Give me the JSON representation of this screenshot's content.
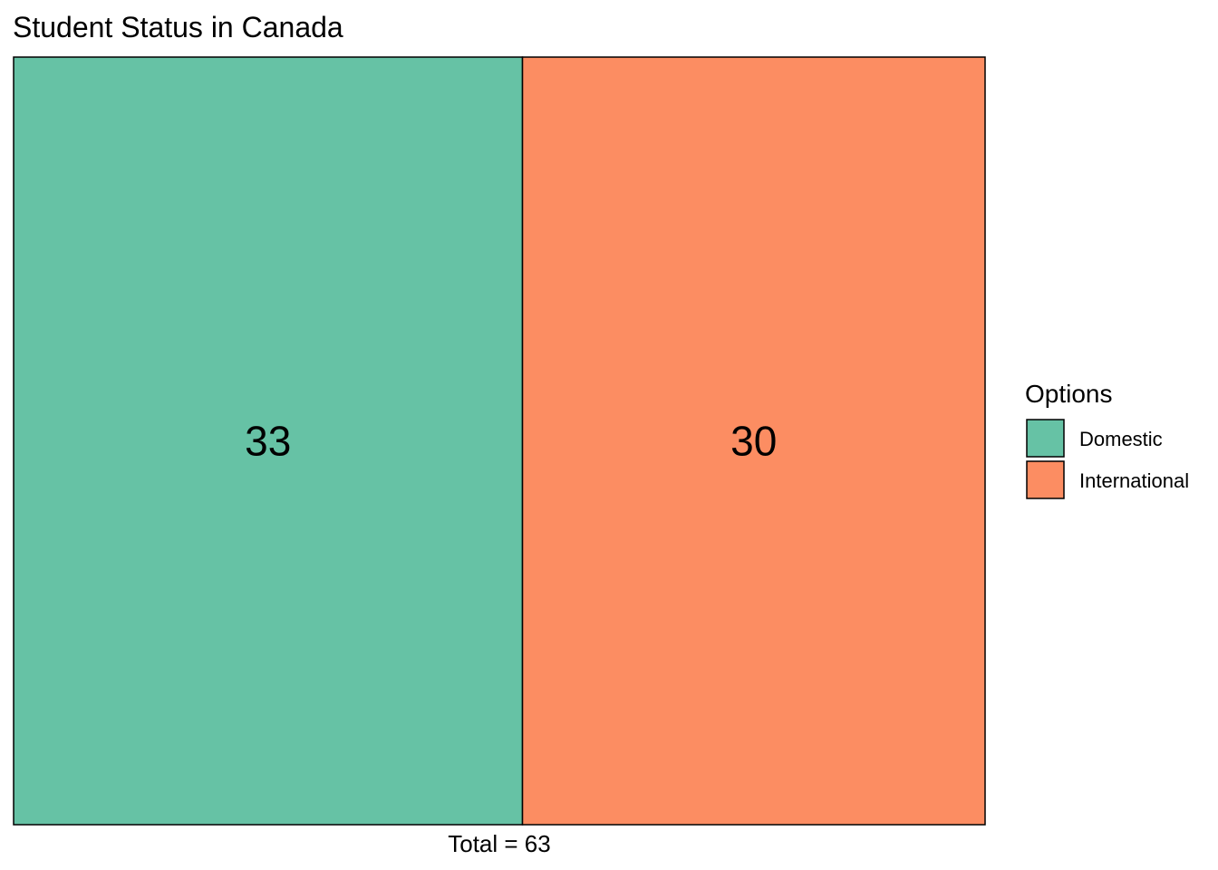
{
  "chart_data": {
    "type": "treemap",
    "title": "Student Status in Canada",
    "caption": "Total = 63",
    "legend": {
      "title": "Options",
      "position": "right"
    },
    "categories": [
      "Domestic",
      "International"
    ],
    "values": [
      33,
      30
    ],
    "colors": [
      "#66c2a5",
      "#fc8d62"
    ],
    "total": 63
  }
}
